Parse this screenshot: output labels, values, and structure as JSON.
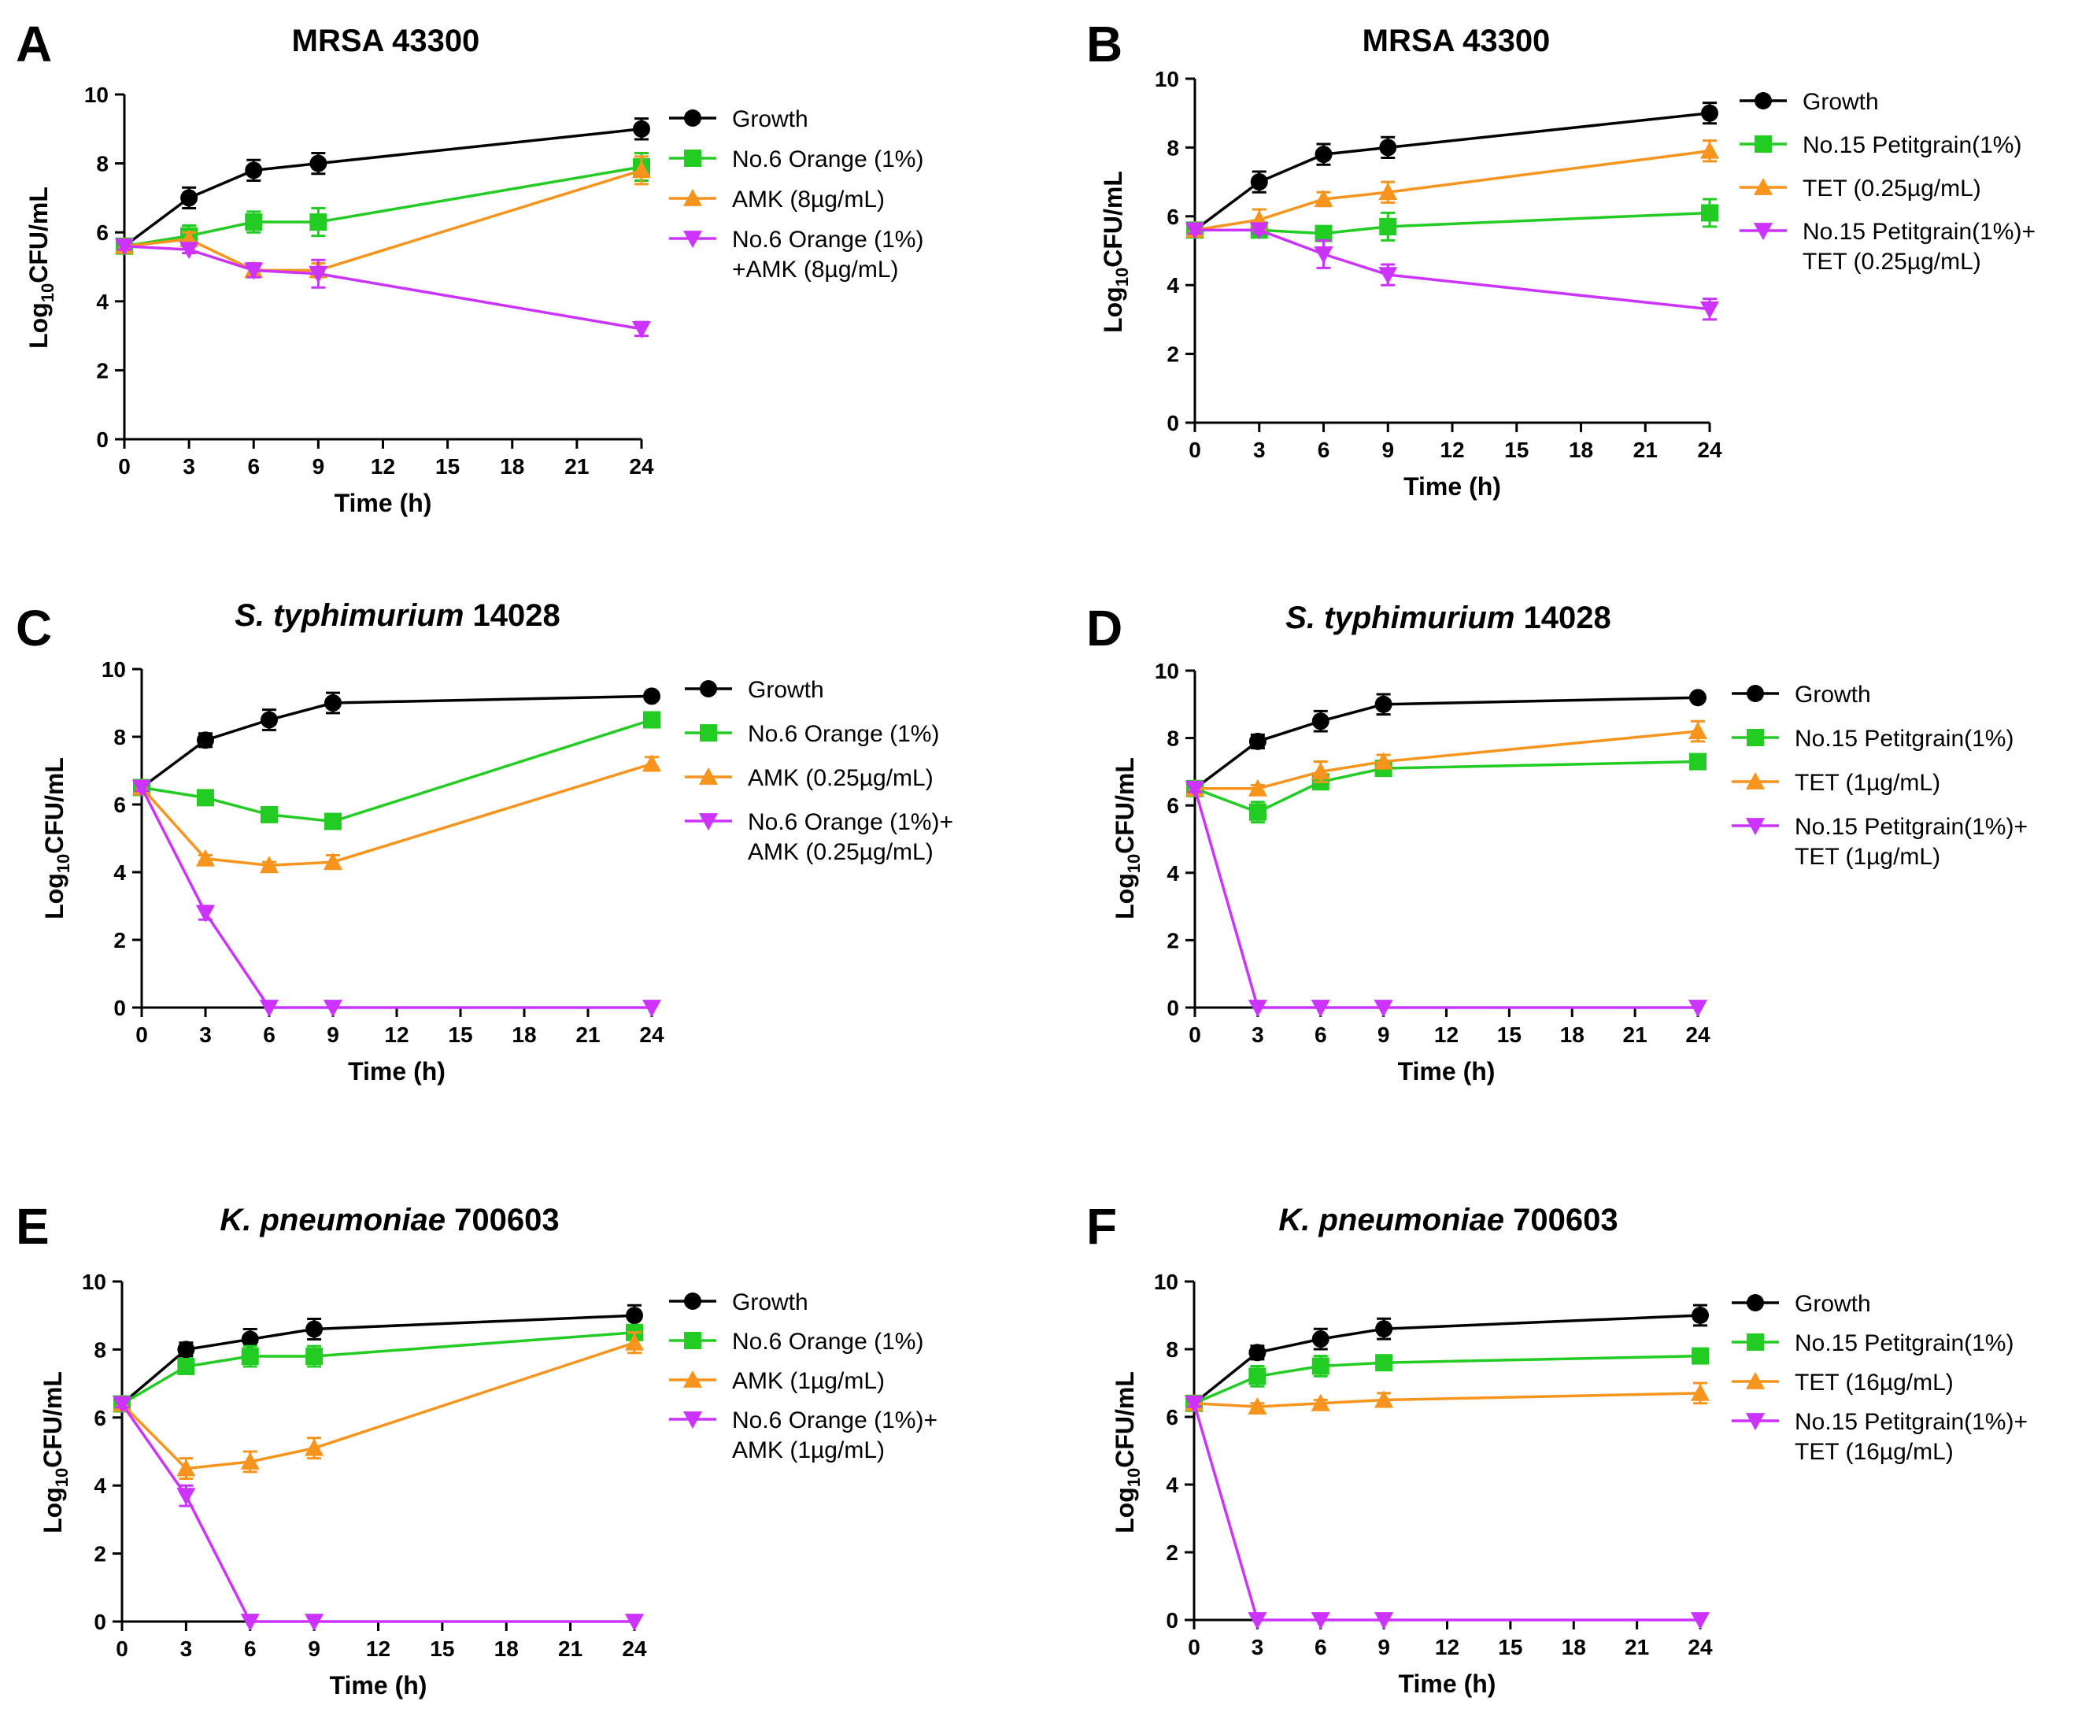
{
  "chart_data": [
    {
      "type": "line",
      "panel": "A",
      "title_plain": "MRSA 43300",
      "title_italic": "",
      "xlabel": "Time (h)",
      "ylabel": "Log10CFU/mL",
      "ylabel_main": "Log",
      "ylabel_sub": "10",
      "ylabel_rest": "CFU/mL",
      "x": [
        0,
        3,
        6,
        9,
        24
      ],
      "xticks": [
        0,
        3,
        6,
        9,
        12,
        15,
        18,
        21,
        24
      ],
      "yticks": [
        0,
        2,
        4,
        6,
        8,
        10
      ],
      "xlim": [
        0,
        24
      ],
      "ylim": [
        0,
        10
      ],
      "series": [
        {
          "name": "Growth",
          "legend_lines": [
            "Growth"
          ],
          "color": "#000000",
          "marker": "circle",
          "values": [
            5.6,
            7.0,
            7.8,
            8.0,
            9.0
          ],
          "errors": [
            0.1,
            0.3,
            0.3,
            0.3,
            0.3
          ]
        },
        {
          "name": "No.6 Orange (1%)",
          "legend_lines": [
            "No.6 Orange (1%)"
          ],
          "color": "#22cc22",
          "marker": "square",
          "values": [
            5.6,
            5.9,
            6.3,
            6.3,
            7.9
          ],
          "errors": [
            0.1,
            0.3,
            0.3,
            0.4,
            0.4
          ]
        },
        {
          "name": "AMK (8µg/mL)",
          "legend_lines": [
            "AMK (8µg/mL)"
          ],
          "color": "#f7941d",
          "marker": "triangle-up",
          "values": [
            5.6,
            5.8,
            4.9,
            4.9,
            7.8
          ],
          "errors": [
            0.1,
            0.2,
            0.2,
            0.2,
            0.4
          ]
        },
        {
          "name": "No.6 Orange (1%) +AMK (8µg/mL)",
          "legend_lines": [
            "No.6 Orange (1%)",
            "+AMK (8µg/mL)"
          ],
          "color": "#cc33ff",
          "marker": "triangle-down",
          "values": [
            5.6,
            5.5,
            4.9,
            4.8,
            3.2
          ],
          "errors": [
            0.1,
            0.1,
            0.2,
            0.4,
            0.2
          ]
        }
      ]
    },
    {
      "type": "line",
      "panel": "B",
      "title_plain": "MRSA 43300",
      "title_italic": "",
      "xlabel": "Time (h)",
      "ylabel": "Log10CFU/mL",
      "ylabel_main": "Log",
      "ylabel_sub": "10",
      "ylabel_rest": "CFU/mL",
      "x": [
        0,
        3,
        6,
        9,
        24
      ],
      "xticks": [
        0,
        3,
        6,
        9,
        12,
        15,
        18,
        21,
        24
      ],
      "yticks": [
        0,
        2,
        4,
        6,
        8,
        10
      ],
      "xlim": [
        0,
        24
      ],
      "ylim": [
        0,
        10
      ],
      "series": [
        {
          "name": "Growth",
          "legend_lines": [
            "Growth"
          ],
          "color": "#000000",
          "marker": "circle",
          "values": [
            5.6,
            7.0,
            7.8,
            8.0,
            9.0
          ],
          "errors": [
            0.1,
            0.3,
            0.3,
            0.3,
            0.3
          ]
        },
        {
          "name": "No.15 Petitgrain(1%)",
          "legend_lines": [
            "No.15 Petitgrain(1%)"
          ],
          "color": "#22cc22",
          "marker": "square",
          "values": [
            5.6,
            5.6,
            5.5,
            5.7,
            6.1
          ],
          "errors": [
            0.1,
            0.1,
            0.2,
            0.4,
            0.4
          ]
        },
        {
          "name": "TET (0.25µg/mL)",
          "legend_lines": [
            "TET (0.25µg/mL)"
          ],
          "color": "#f7941d",
          "marker": "triangle-up",
          "values": [
            5.6,
            5.9,
            6.5,
            6.7,
            7.9
          ],
          "errors": [
            0.1,
            0.3,
            0.2,
            0.3,
            0.3
          ]
        },
        {
          "name": "No.15 Petitgrain(1%)+ TET (0.25µg/mL)",
          "legend_lines": [
            "No.15 Petitgrain(1%)+",
            "TET (0.25µg/mL)"
          ],
          "color": "#cc33ff",
          "marker": "triangle-down",
          "values": [
            5.6,
            5.6,
            4.9,
            4.3,
            3.3
          ],
          "errors": [
            0.1,
            0.1,
            0.4,
            0.3,
            0.3
          ]
        }
      ]
    },
    {
      "type": "line",
      "panel": "C",
      "title_plain": "14028",
      "title_italic": "S. typhimurium",
      "xlabel": "Time (h)",
      "ylabel": "Log10CFU/mL",
      "ylabel_main": "Log",
      "ylabel_sub": "10",
      "ylabel_rest": "CFU/mL",
      "x": [
        0,
        3,
        6,
        9,
        24
      ],
      "xticks": [
        0,
        3,
        6,
        9,
        12,
        15,
        18,
        21,
        24
      ],
      "yticks": [
        0,
        2,
        4,
        6,
        8,
        10
      ],
      "xlim": [
        0,
        24
      ],
      "ylim": [
        0,
        10
      ],
      "series": [
        {
          "name": "Growth",
          "legend_lines": [
            "Growth"
          ],
          "color": "#000000",
          "marker": "circle",
          "values": [
            6.5,
            7.9,
            8.5,
            9.0,
            9.2
          ],
          "errors": [
            0.1,
            0.2,
            0.3,
            0.3,
            0.1
          ]
        },
        {
          "name": "No.6 Orange (1%)",
          "legend_lines": [
            "No.6 Orange (1%)"
          ],
          "color": "#22cc22",
          "marker": "square",
          "values": [
            6.5,
            6.2,
            5.7,
            5.5,
            8.5
          ],
          "errors": [
            0.1,
            0.1,
            0.2,
            0.2,
            0.2
          ]
        },
        {
          "name": "AMK (0.25µg/mL)",
          "legend_lines": [
            "AMK (0.25µg/mL)"
          ],
          "color": "#f7941d",
          "marker": "triangle-up",
          "values": [
            6.5,
            4.4,
            4.2,
            4.3,
            7.2
          ],
          "errors": [
            0.1,
            0.1,
            0.1,
            0.2,
            0.2
          ]
        },
        {
          "name": "No.6 Orange (1%)+ AMK (0.25µg/mL)",
          "legend_lines": [
            "No.6 Orange (1%)+",
            "AMK (0.25µg/mL)"
          ],
          "color": "#cc33ff",
          "marker": "triangle-down",
          "values": [
            6.5,
            2.8,
            0.0,
            0.0,
            0.0
          ],
          "errors": [
            0.1,
            0.2,
            0.0,
            0.0,
            0.0
          ]
        }
      ]
    },
    {
      "type": "line",
      "panel": "D",
      "title_plain": "14028",
      "title_italic": "S. typhimurium",
      "xlabel": "Time (h)",
      "ylabel": "Log10CFU/mL",
      "ylabel_main": "Log",
      "ylabel_sub": "10",
      "ylabel_rest": "CFU/mL",
      "x": [
        0,
        3,
        6,
        9,
        24
      ],
      "xticks": [
        0,
        3,
        6,
        9,
        12,
        15,
        18,
        21,
        24
      ],
      "yticks": [
        0,
        2,
        4,
        6,
        8,
        10
      ],
      "xlim": [
        0,
        24
      ],
      "ylim": [
        0,
        10
      ],
      "series": [
        {
          "name": "Growth",
          "legend_lines": [
            "Growth"
          ],
          "color": "#000000",
          "marker": "circle",
          "values": [
            6.5,
            7.9,
            8.5,
            9.0,
            9.2
          ],
          "errors": [
            0.1,
            0.2,
            0.3,
            0.3,
            0.1
          ]
        },
        {
          "name": "No.15 Petitgrain(1%)",
          "legend_lines": [
            "No.15 Petitgrain(1%)"
          ],
          "color": "#22cc22",
          "marker": "square",
          "values": [
            6.5,
            5.8,
            6.7,
            7.1,
            7.3
          ],
          "errors": [
            0.1,
            0.3,
            0.2,
            0.2,
            0.1
          ]
        },
        {
          "name": "TET (1µg/mL)",
          "legend_lines": [
            "TET (1µg/mL)"
          ],
          "color": "#f7941d",
          "marker": "triangle-up",
          "values": [
            6.5,
            6.5,
            7.0,
            7.3,
            8.2
          ],
          "errors": [
            0.1,
            0.1,
            0.3,
            0.2,
            0.3
          ]
        },
        {
          "name": "No.15 Petitgrain(1%)+ TET (1µg/mL)",
          "legend_lines": [
            "No.15 Petitgrain(1%)+",
            "TET (1µg/mL)"
          ],
          "color": "#cc33ff",
          "marker": "triangle-down",
          "values": [
            6.5,
            0.0,
            0.0,
            0.0,
            0.0
          ],
          "errors": [
            0.1,
            0.0,
            0.0,
            0.0,
            0.0
          ]
        }
      ]
    },
    {
      "type": "line",
      "panel": "E",
      "title_plain": "700603",
      "title_italic": "K. pneumoniae",
      "xlabel": "Time (h)",
      "ylabel": "Log10CFU/mL",
      "ylabel_main": "Log",
      "ylabel_sub": "10",
      "ylabel_rest": "CFU/mL",
      "x": [
        0,
        3,
        6,
        9,
        24
      ],
      "xticks": [
        0,
        3,
        6,
        9,
        12,
        15,
        18,
        21,
        24
      ],
      "yticks": [
        0,
        2,
        4,
        6,
        8,
        10
      ],
      "xlim": [
        0,
        24
      ],
      "ylim": [
        0,
        10
      ],
      "series": [
        {
          "name": "Growth",
          "legend_lines": [
            "Growth"
          ],
          "color": "#000000",
          "marker": "circle",
          "values": [
            6.4,
            8.0,
            8.3,
            8.6,
            9.0
          ],
          "errors": [
            0.1,
            0.2,
            0.3,
            0.3,
            0.3
          ]
        },
        {
          "name": "No.6 Orange (1%)",
          "legend_lines": [
            "No.6 Orange (1%)"
          ],
          "color": "#22cc22",
          "marker": "square",
          "values": [
            6.4,
            7.5,
            7.8,
            7.8,
            8.5
          ],
          "errors": [
            0.1,
            0.2,
            0.3,
            0.3,
            0.2
          ]
        },
        {
          "name": "AMK (1µg/mL)",
          "legend_lines": [
            "AMK (1µg/mL)"
          ],
          "color": "#f7941d",
          "marker": "triangle-up",
          "values": [
            6.4,
            4.5,
            4.7,
            5.1,
            8.2
          ],
          "errors": [
            0.1,
            0.3,
            0.3,
            0.3,
            0.3
          ]
        },
        {
          "name": "No.6 Orange (1%)+ AMK (1µg/mL)",
          "legend_lines": [
            "No.6 Orange (1%)+",
            "AMK (1µg/mL)"
          ],
          "color": "#cc33ff",
          "marker": "triangle-down",
          "values": [
            6.4,
            3.7,
            0.0,
            0.0,
            0.0
          ],
          "errors": [
            0.1,
            0.3,
            0.0,
            0.0,
            0.0
          ]
        }
      ]
    },
    {
      "type": "line",
      "panel": "F",
      "title_plain": "700603",
      "title_italic": "K. pneumoniae",
      "xlabel": "Time (h)",
      "ylabel": "Log10CFU/mL",
      "ylabel_main": "Log",
      "ylabel_sub": "10",
      "ylabel_rest": "CFU/mL",
      "x": [
        0,
        3,
        6,
        9,
        24
      ],
      "xticks": [
        0,
        3,
        6,
        9,
        12,
        15,
        18,
        21,
        24
      ],
      "yticks": [
        0,
        2,
        4,
        6,
        8,
        10
      ],
      "xlim": [
        0,
        24
      ],
      "ylim": [
        0,
        10
      ],
      "series": [
        {
          "name": "Growth",
          "legend_lines": [
            "Growth"
          ],
          "color": "#000000",
          "marker": "circle",
          "values": [
            6.4,
            7.9,
            8.3,
            8.6,
            9.0
          ],
          "errors": [
            0.1,
            0.2,
            0.3,
            0.3,
            0.3
          ]
        },
        {
          "name": "No.15 Petitgrain(1%)",
          "legend_lines": [
            "No.15 Petitgrain(1%)"
          ],
          "color": "#22cc22",
          "marker": "square",
          "values": [
            6.4,
            7.2,
            7.5,
            7.6,
            7.8
          ],
          "errors": [
            0.1,
            0.3,
            0.3,
            0.2,
            0.1
          ]
        },
        {
          "name": "TET (16µg/mL)",
          "legend_lines": [
            "TET (16µg/mL)"
          ],
          "color": "#f7941d",
          "marker": "triangle-up",
          "values": [
            6.4,
            6.3,
            6.4,
            6.5,
            6.7
          ],
          "errors": [
            0.1,
            0.1,
            0.1,
            0.2,
            0.3
          ]
        },
        {
          "name": "No.15 Petitgrain(1%)+ TET (16µg/mL)",
          "legend_lines": [
            "No.15 Petitgrain(1%)+",
            "TET (16µg/mL)"
          ],
          "color": "#cc33ff",
          "marker": "triangle-down",
          "values": [
            6.4,
            0.0,
            0.0,
            0.0,
            0.0
          ],
          "errors": [
            0.1,
            0.0,
            0.0,
            0.0,
            0.0
          ]
        }
      ]
    }
  ]
}
